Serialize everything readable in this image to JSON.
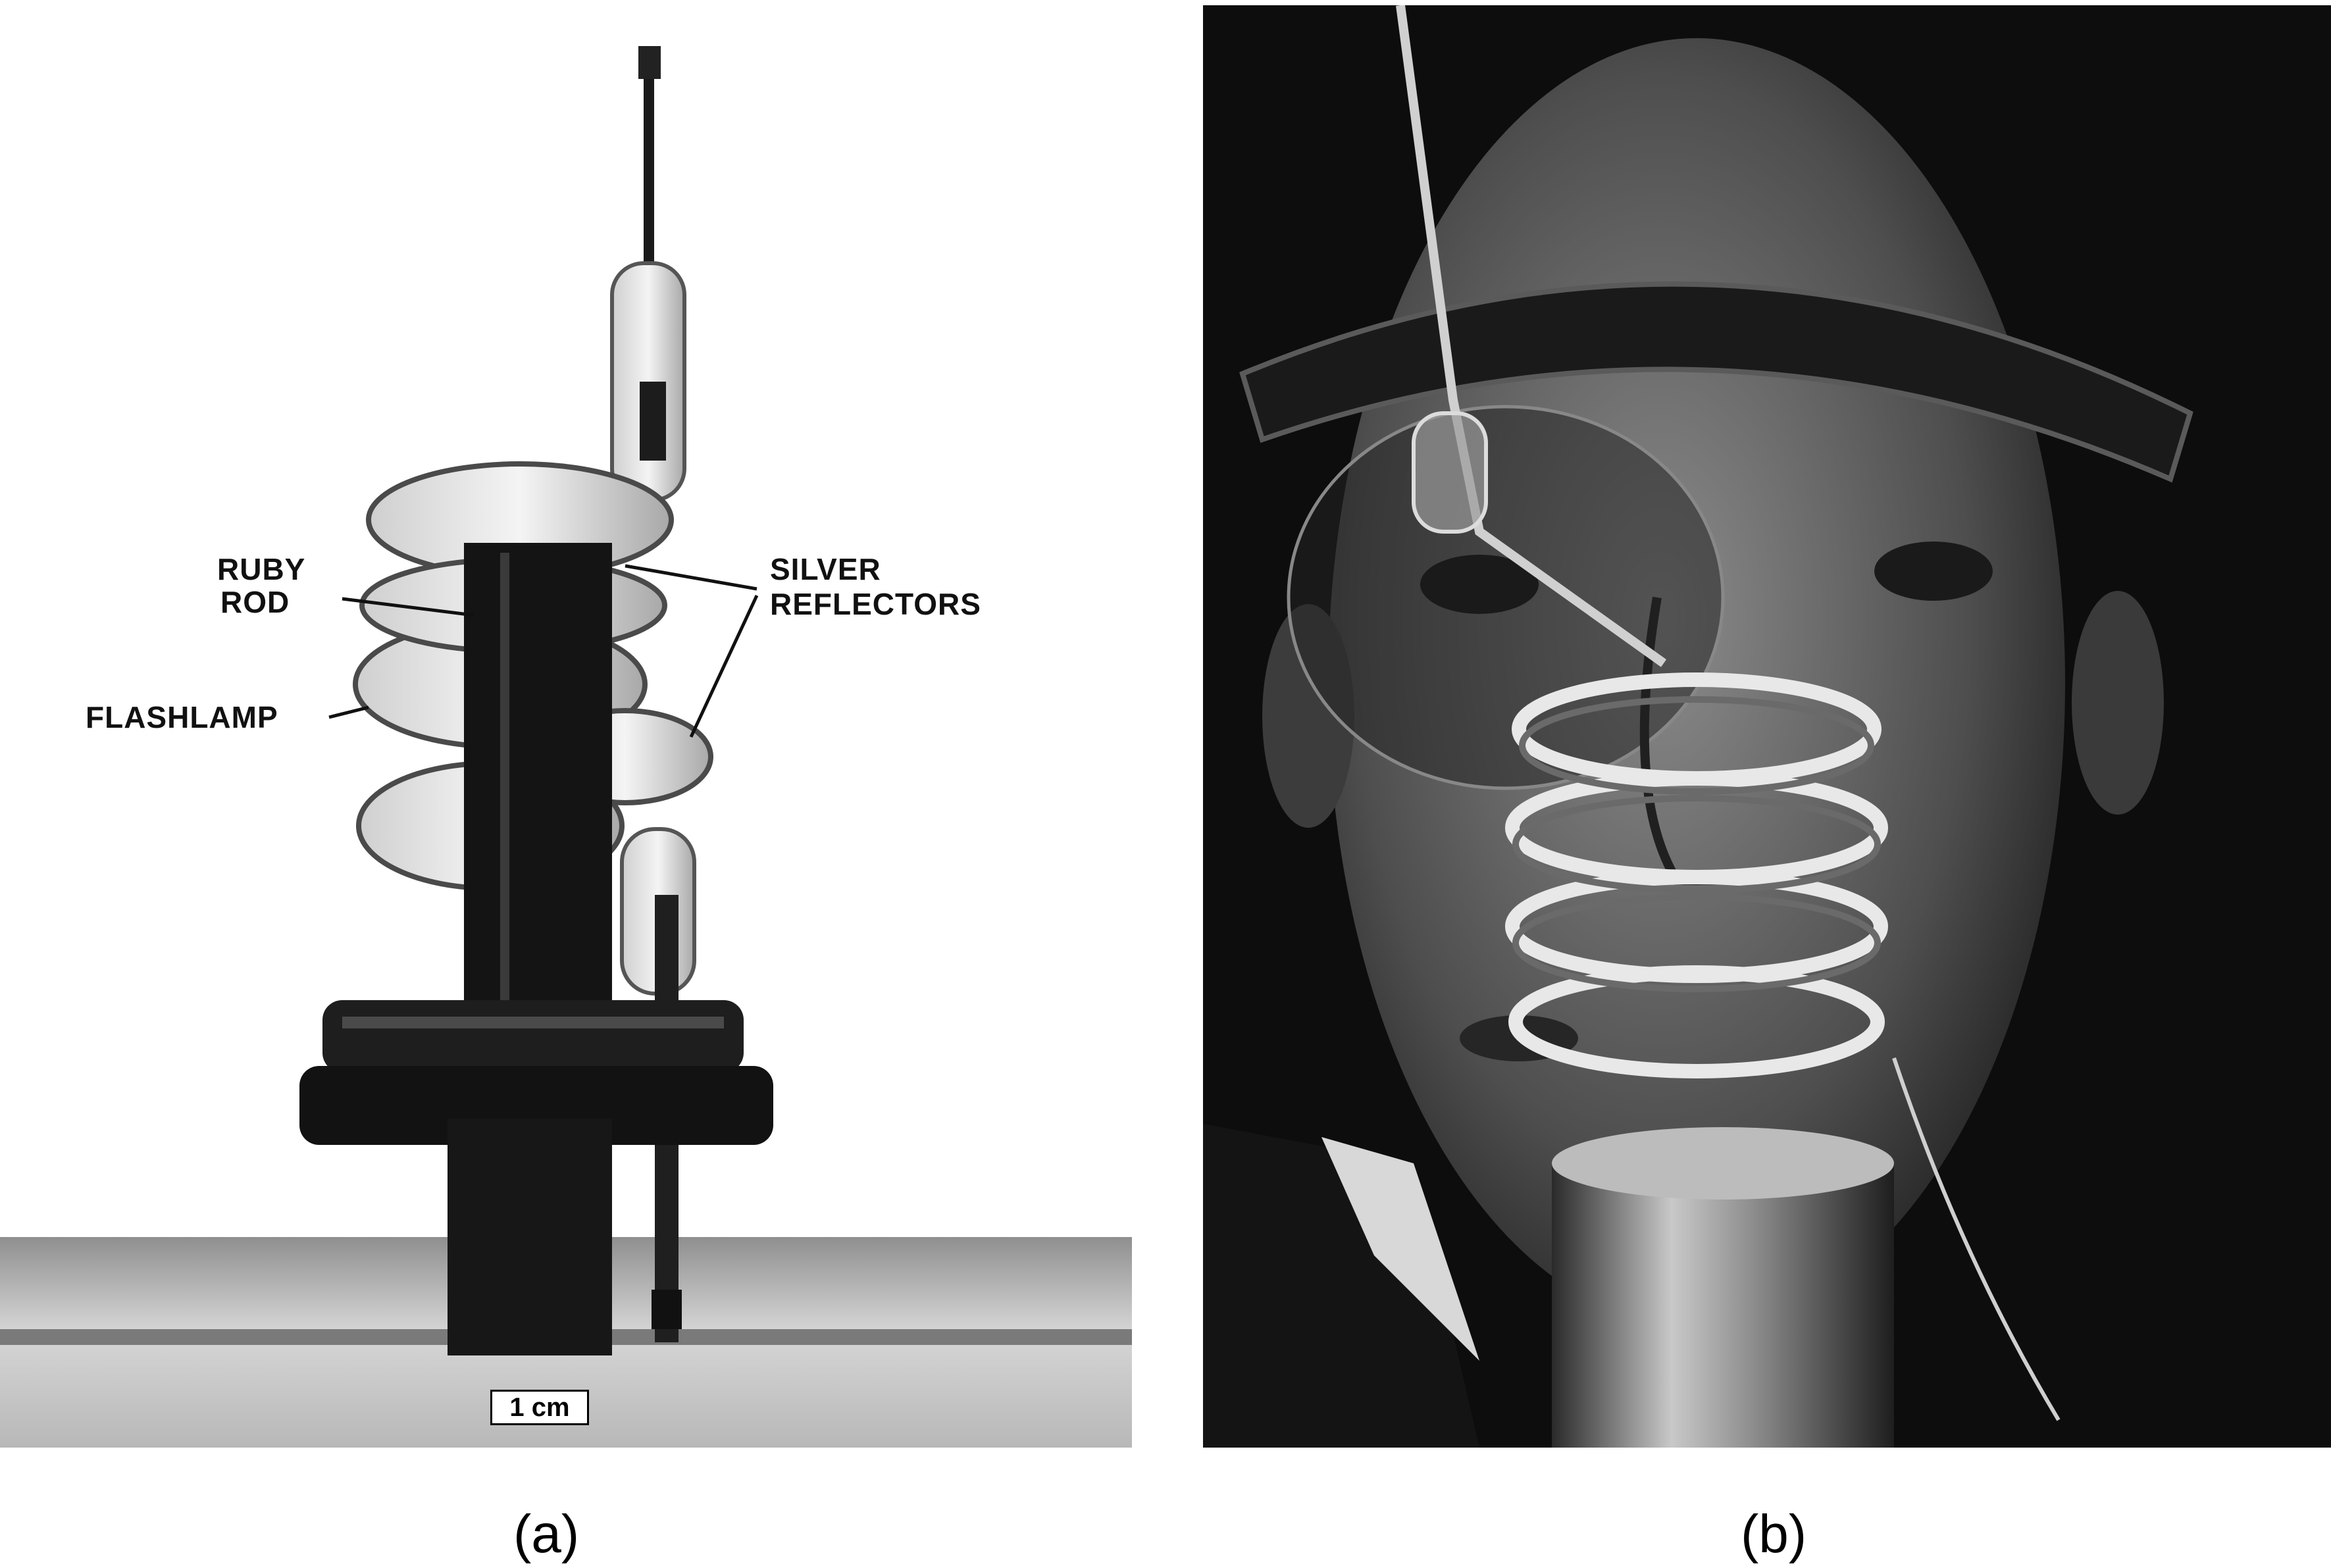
{
  "panel_a": {
    "labels": {
      "ruby_line1": "RUBY",
      "ruby_line2": "ROD",
      "silver_line1": "SILVER",
      "silver_line2": "REFLECTORS",
      "flashlamp": "FLASHLAMP",
      "scale": "1 cm"
    },
    "caption": "(a)"
  },
  "panel_b": {
    "caption": "(b)"
  }
}
